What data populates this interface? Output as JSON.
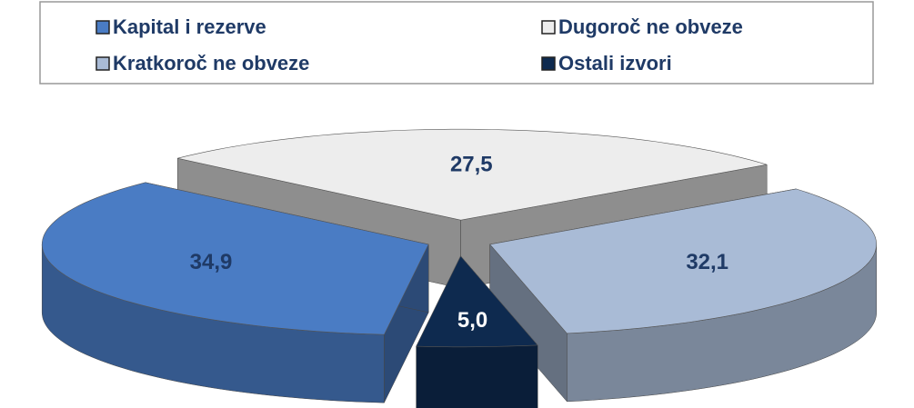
{
  "chart_data": {
    "type": "pie",
    "categories": [
      "Kapital i rezerve",
      "Dugoroč ne obveze",
      "Kratkoroč ne obveze",
      "Ostali izvori"
    ],
    "values": [
      34.9,
      27.5,
      32.1,
      5.0
    ],
    "value_labels": [
      "34,9",
      "27,5",
      "32,1",
      "5,0"
    ],
    "colors": [
      "#4a7cc4",
      "#ededed",
      "#a9bbd6",
      "#0e2a4f"
    ],
    "legend": "top"
  }
}
